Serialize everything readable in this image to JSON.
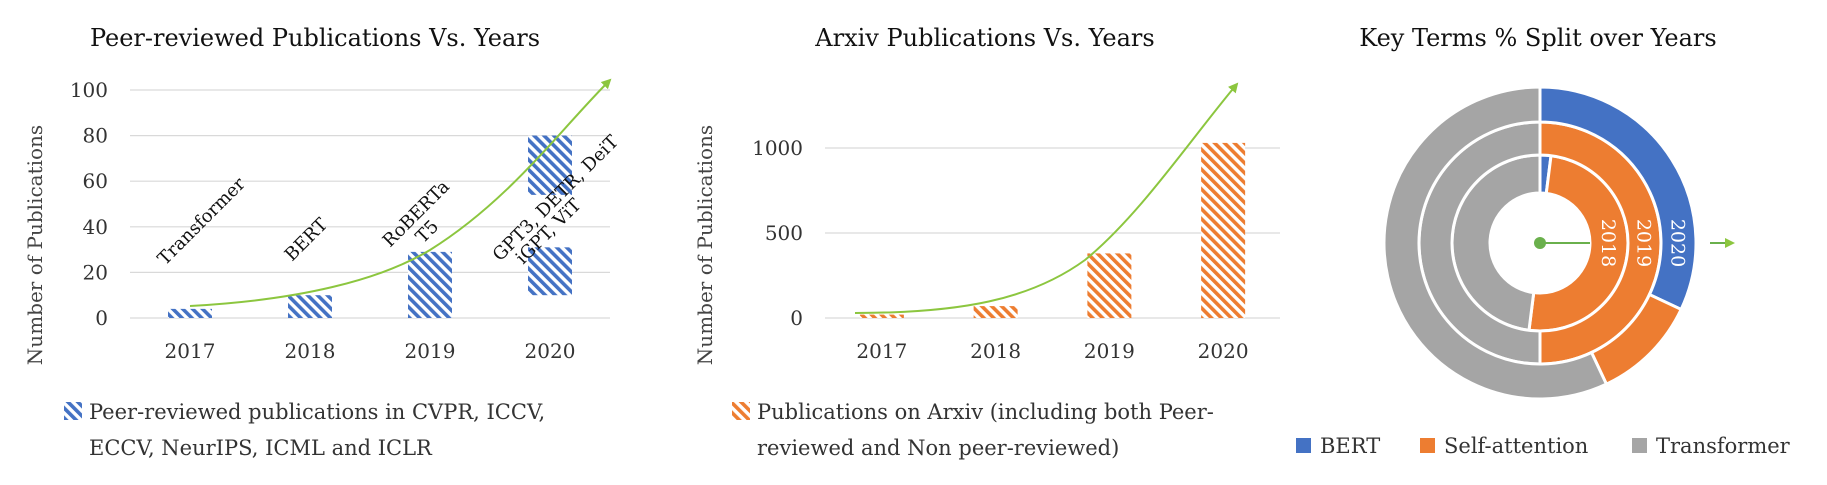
{
  "colors": {
    "blue": "#4472c4",
    "orange": "#ed7d31",
    "gray": "#a5a5a5",
    "trend": "#8cc63f"
  },
  "chart_data": [
    {
      "type": "bar",
      "title": "Peer-reviewed Publications Vs. Years",
      "ylabel": "Number of Publications",
      "categories": [
        "2017",
        "2018",
        "2019",
        "2020"
      ],
      "yticks": [
        "0",
        "20",
        "40",
        "60",
        "80",
        "100"
      ],
      "ylim": [
        0,
        100
      ],
      "values": [
        4,
        10,
        29,
        80
      ],
      "hatched_segment_2020": [
        54,
        80
      ],
      "hatched_segment_2020_lower": [
        10,
        31
      ],
      "annotations": [
        "Transformer",
        "BERT",
        "RoBERTa",
        "T5",
        "GPT3, DETR, DeiT",
        "iGPT, ViT"
      ],
      "legend": [
        "Peer-reviewed publications in CVPR, ICCV,",
        "ECCV, NeurIPS, ICML and ICLR"
      ],
      "grid": true
    },
    {
      "type": "bar",
      "title": "Arxiv Publications Vs. Years",
      "ylabel": "Number of Publications",
      "categories": [
        "2017",
        "2018",
        "2019",
        "2020"
      ],
      "yticks": [
        "0",
        "500",
        "1000"
      ],
      "ylim": [
        0,
        1200
      ],
      "values": [
        20,
        70,
        380,
        1030
      ],
      "legend": [
        "Publications on Arxiv (including both Peer-",
        "reviewed and Non peer-reviewed)"
      ],
      "grid": true
    },
    {
      "type": "pie",
      "title": "Key Terms % Split over Years",
      "rings": [
        {
          "label": "2018",
          "values": {
            "BERT": 2,
            "Self-attention": 50,
            "Transformer": 48
          }
        },
        {
          "label": "2019",
          "values": {
            "BERT": 0,
            "Self-attention": 50,
            "Transformer": 50
          }
        },
        {
          "label": "2020",
          "values": {
            "BERT": 32,
            "Self-attention": 11,
            "Transformer": 57
          }
        }
      ],
      "legend": [
        "BERT",
        "Self-attention",
        "Transformer"
      ]
    }
  ]
}
